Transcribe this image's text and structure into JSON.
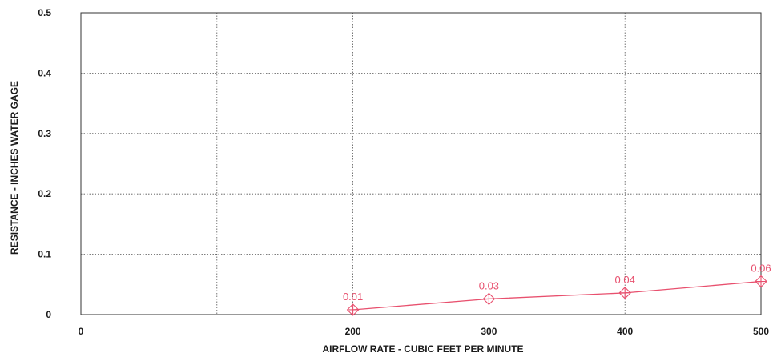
{
  "chart_data": {
    "type": "line",
    "title": "",
    "xlabel": "AIRFLOW RATE - CUBIC FEET PER MINUTE",
    "ylabel": "RESISTANCE - INCHES WATER GAGE",
    "xlim": [
      0,
      500
    ],
    "ylim": [
      0,
      0.5
    ],
    "x_ticks": [
      0,
      200,
      300,
      400,
      500
    ],
    "x_tick_labels": [
      "0",
      "200",
      "300",
      "400",
      "500"
    ],
    "y_ticks": [
      0,
      0.1,
      0.2,
      0.3,
      0.4,
      0.5
    ],
    "y_tick_labels": [
      "0",
      "0.1",
      "0.2",
      "0.3",
      "0.4",
      "0.5"
    ],
    "grid": true,
    "series": [
      {
        "x": [
          200,
          300,
          400,
          500
        ],
        "y": [
          0.008,
          0.026,
          0.036,
          0.055
        ],
        "labels": [
          "0.01",
          "0.03",
          "0.04",
          "0.06"
        ],
        "marker": "diamond-cross",
        "color": "#e8506e"
      }
    ]
  }
}
